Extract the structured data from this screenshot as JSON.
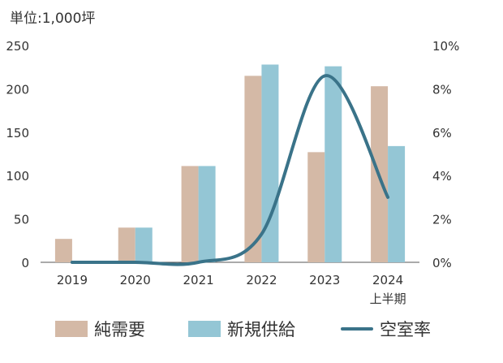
{
  "chart_data": {
    "type": "bar",
    "unit_label": "単位:1,000坪",
    "categories": [
      "2019",
      "2020",
      "2021",
      "2022",
      "2023",
      "2024"
    ],
    "category_sublabels": [
      "",
      "",
      "",
      "",
      "",
      "上半期"
    ],
    "series": [
      {
        "name": "純需要",
        "type": "bar",
        "axis": "left",
        "color": "#d4b9a6",
        "values": [
          27,
          40,
          111,
          215,
          127,
          203
        ]
      },
      {
        "name": "新規供給",
        "type": "bar",
        "axis": "left",
        "color": "#94c6d5",
        "values": [
          0,
          40,
          111,
          228,
          226,
          134
        ]
      },
      {
        "name": "空室率",
        "type": "line",
        "axis": "right",
        "color": "#3a7389",
        "values": [
          0.0,
          0.0,
          0.0,
          1.3,
          8.6,
          3.0
        ]
      }
    ],
    "y_left": {
      "min": 0,
      "max": 250,
      "ticks": [
        0,
        50,
        100,
        150,
        200,
        250
      ]
    },
    "y_right": {
      "min": 0,
      "max": 10,
      "ticks": [
        "0%",
        "2%",
        "4%",
        "6%",
        "8%",
        "10%"
      ]
    },
    "grid": false,
    "legend_position": "bottom"
  }
}
